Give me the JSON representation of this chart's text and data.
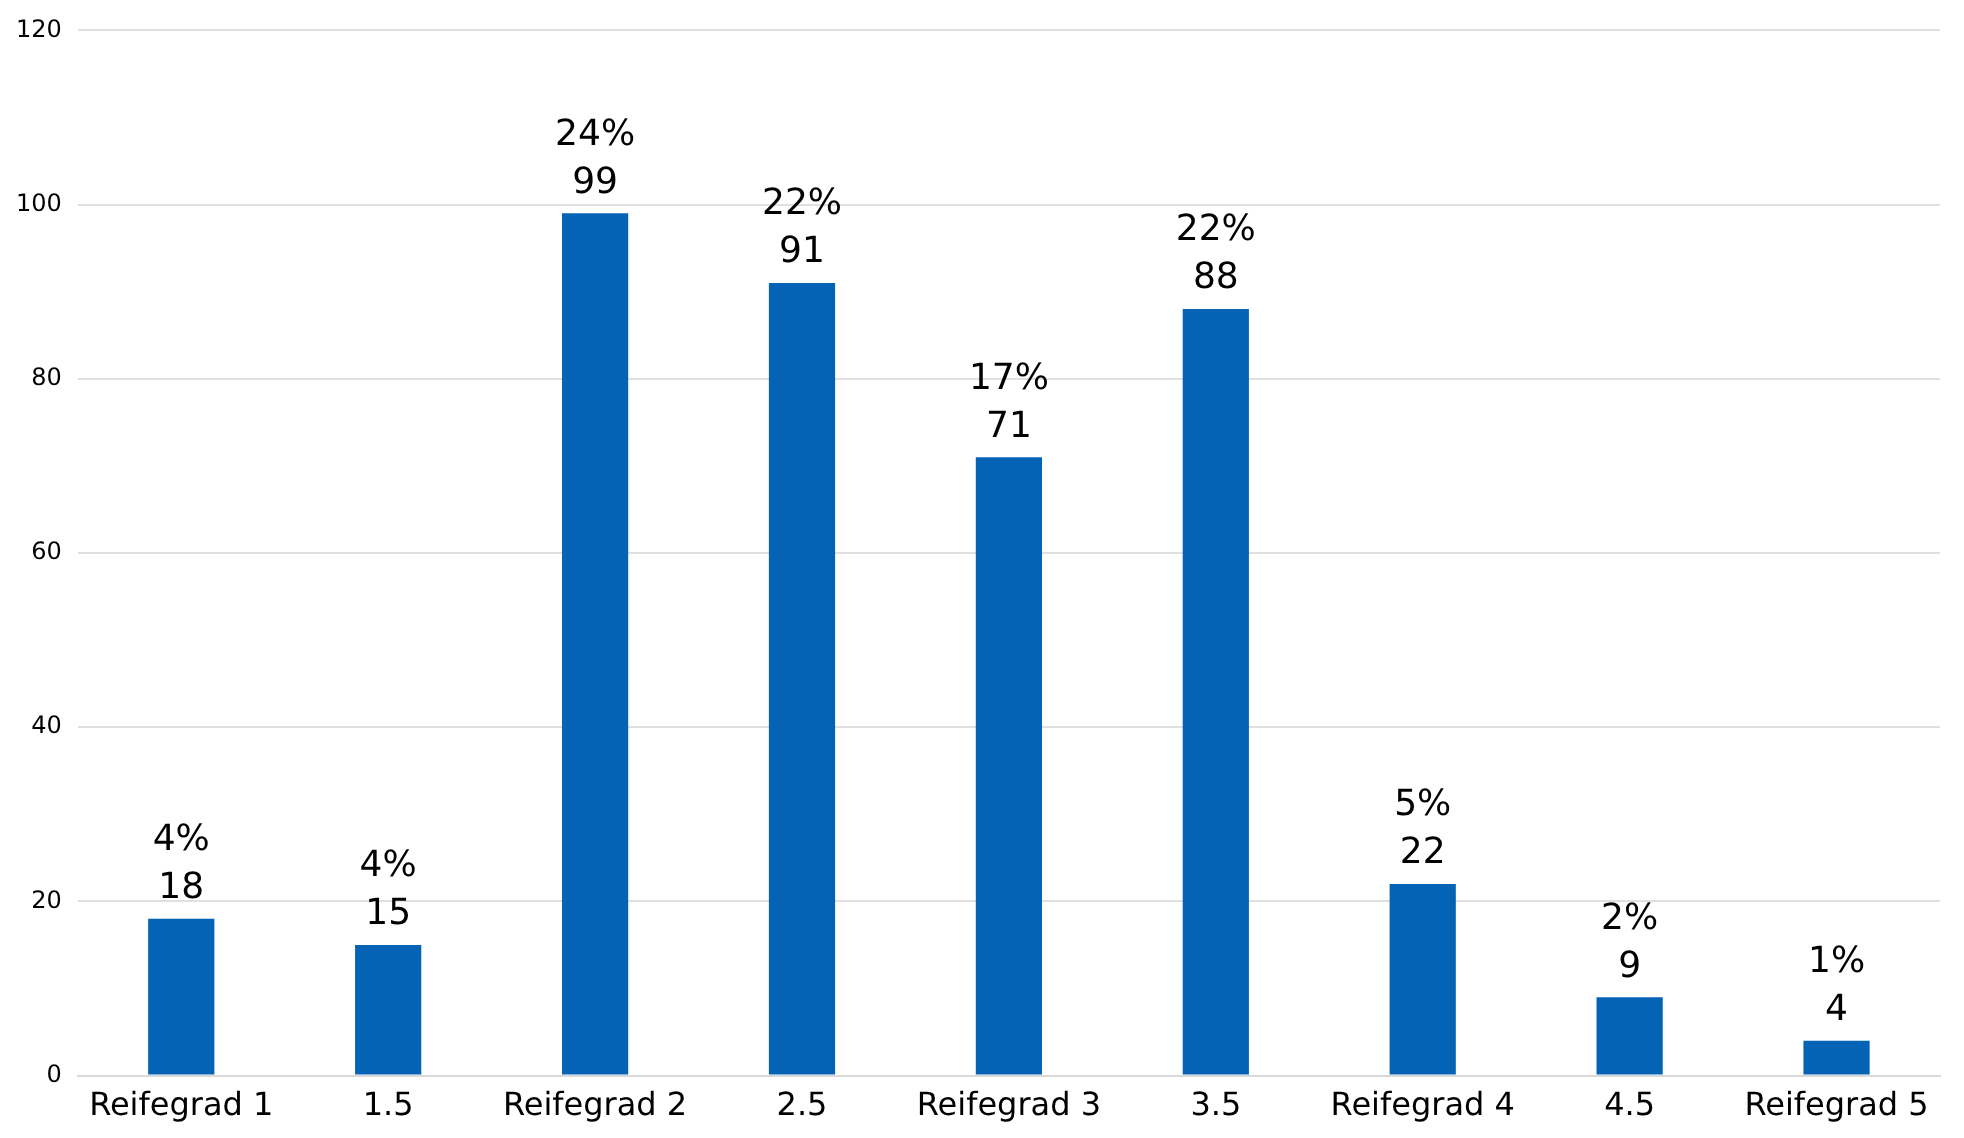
{
  "chart_data": {
    "type": "bar",
    "categories": [
      "Reifegrad 1",
      "1.5",
      "Reifegrad 2",
      "2.5",
      "Reifegrad 3",
      "3.5",
      "Reifegrad 4",
      "4.5",
      "Reifegrad 5"
    ],
    "values": [
      18,
      15,
      99,
      91,
      71,
      88,
      22,
      9,
      4
    ],
    "color": "#0563b5",
    "ylim": [
      0,
      120
    ],
    "yticks": [
      0,
      20,
      40,
      60,
      80,
      100,
      120
    ],
    "grid": "y",
    "legend": false,
    "data_labels": true,
    "annotations": [
      {
        "text": "4%",
        "x": "Reifegrad 1",
        "y": 18
      },
      {
        "text": "4%",
        "x": "1.5",
        "y": 15
      },
      {
        "text": "24%",
        "x": "Reifegrad 2",
        "y": 99
      },
      {
        "text": "22%",
        "x": "2.5",
        "y": 91
      },
      {
        "text": "17%",
        "x": "Reifegrad 3",
        "y": 71
      },
      {
        "text": "22%",
        "x": "3.5",
        "y": 88
      },
      {
        "text": "5%",
        "x": "Reifegrad 4",
        "y": 22
      },
      {
        "text": "2%",
        "x": "4.5",
        "y": 9
      },
      {
        "text": "1%",
        "x": "Reifegrad 5",
        "y": 4
      }
    ]
  }
}
